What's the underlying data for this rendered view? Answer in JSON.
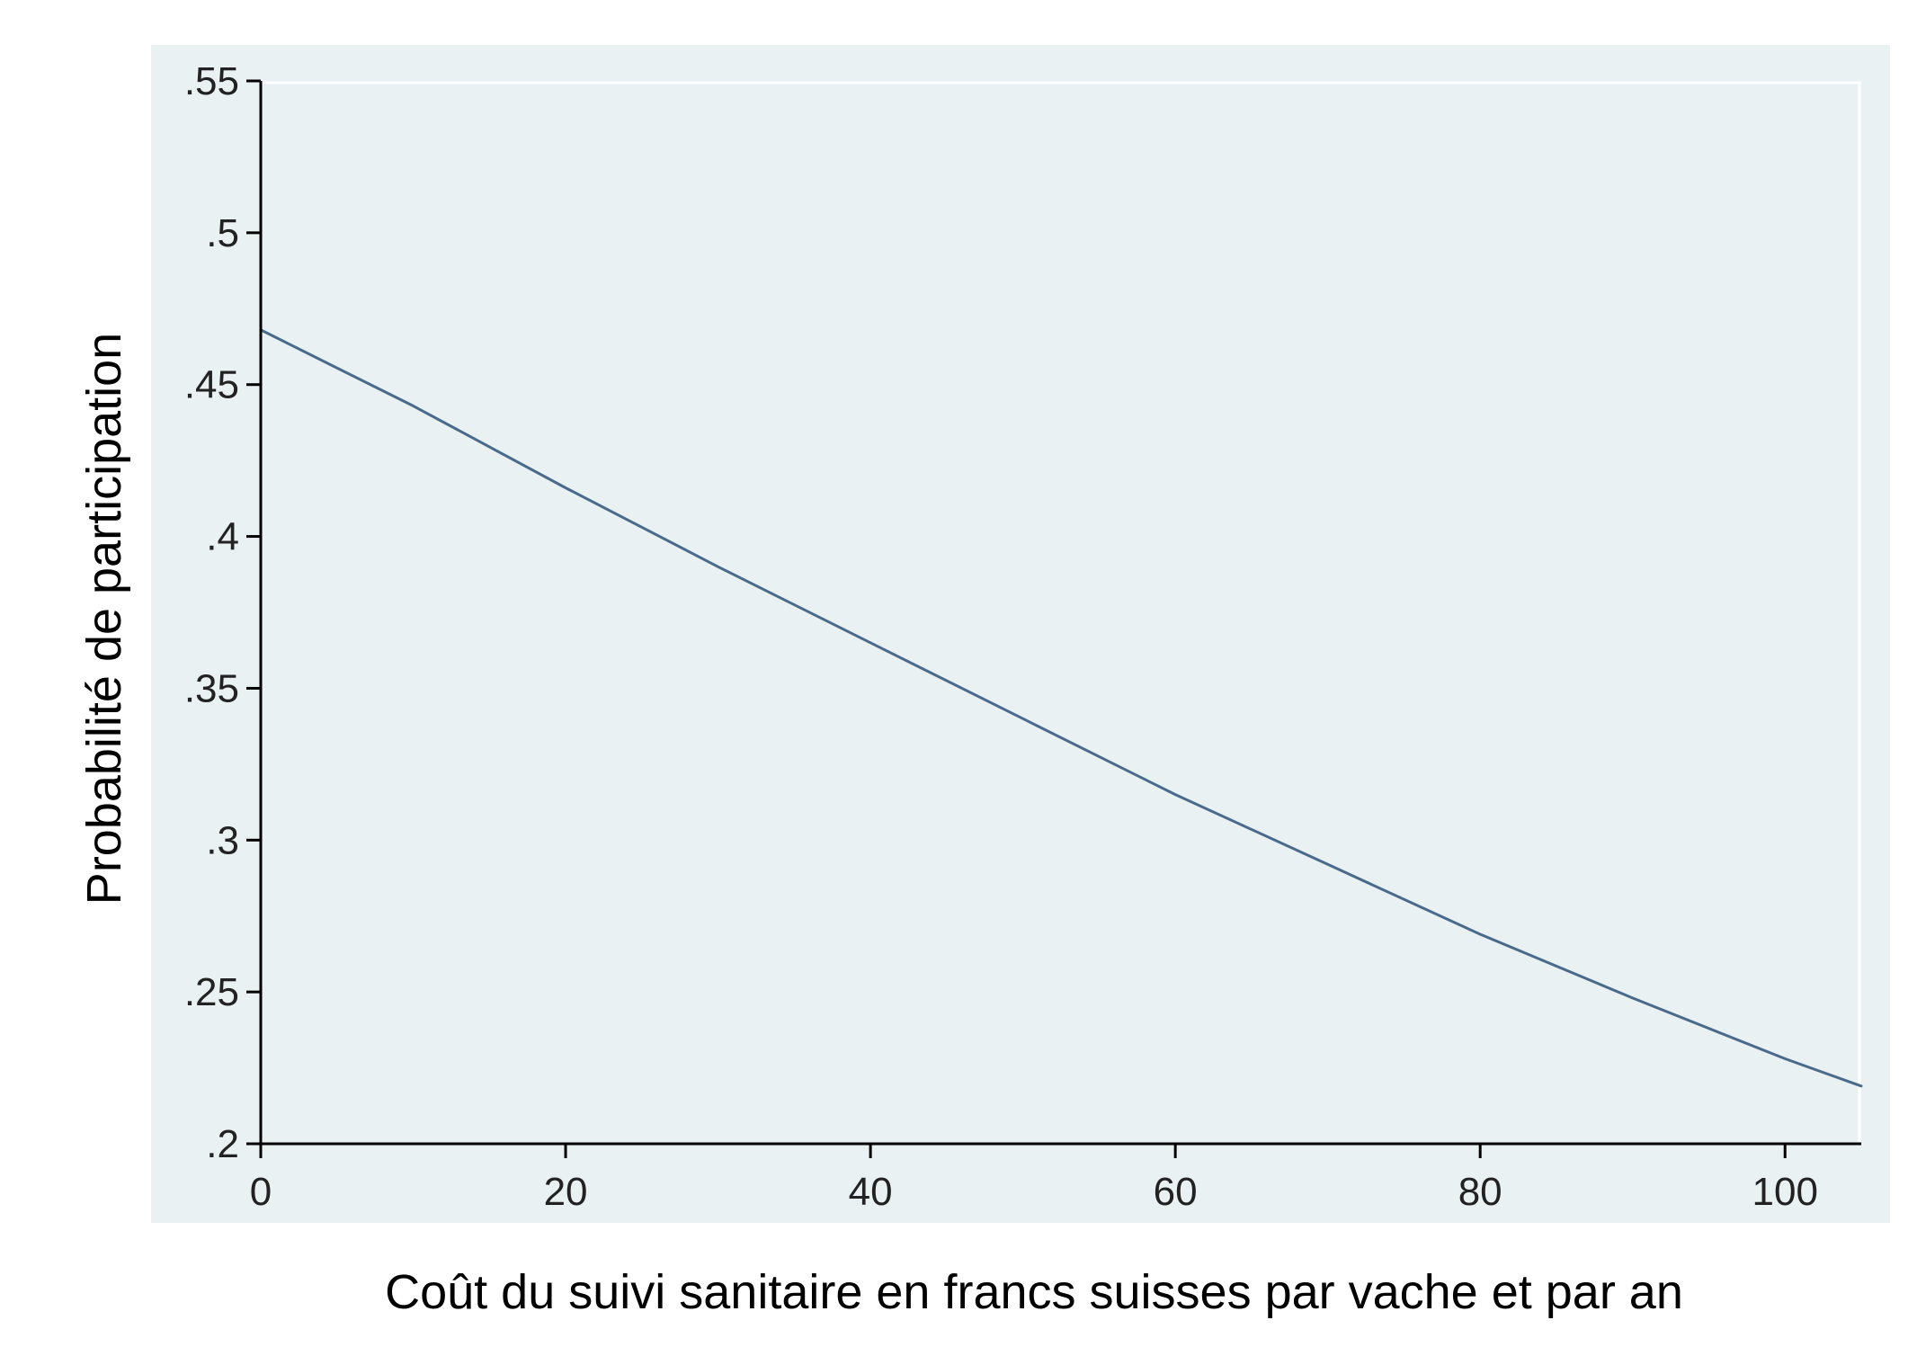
{
  "chart_data": {
    "type": "line",
    "title": "",
    "xlabel": "Coût du suivi sanitaire en francs suisses par vache et par an",
    "ylabel": "Probabilité de participation",
    "xlim": [
      0,
      105
    ],
    "ylim": [
      0.2,
      0.55
    ],
    "x_ticks": [
      0,
      20,
      40,
      60,
      80,
      100
    ],
    "x_tick_labels": [
      "0",
      "20",
      "40",
      "60",
      "80",
      "100"
    ],
    "y_ticks": [
      0.2,
      0.25,
      0.3,
      0.35,
      0.4,
      0.45,
      0.5,
      0.55
    ],
    "y_tick_labels": [
      ".2",
      ".25",
      ".3",
      ".35",
      ".4",
      ".45",
      ".5",
      ".55"
    ],
    "grid": false,
    "legend": "none",
    "colors": {
      "plot_background": "#e9f1f3",
      "line": "#4a6a8c",
      "axis": "#000000"
    },
    "series": [
      {
        "x": [
          0,
          10,
          20,
          30,
          40,
          50,
          60,
          70,
          80,
          90,
          100,
          105
        ],
        "values": [
          0.468,
          0.443,
          0.416,
          0.39,
          0.365,
          0.34,
          0.315,
          0.292,
          0.269,
          0.248,
          0.228,
          0.219
        ]
      }
    ]
  }
}
